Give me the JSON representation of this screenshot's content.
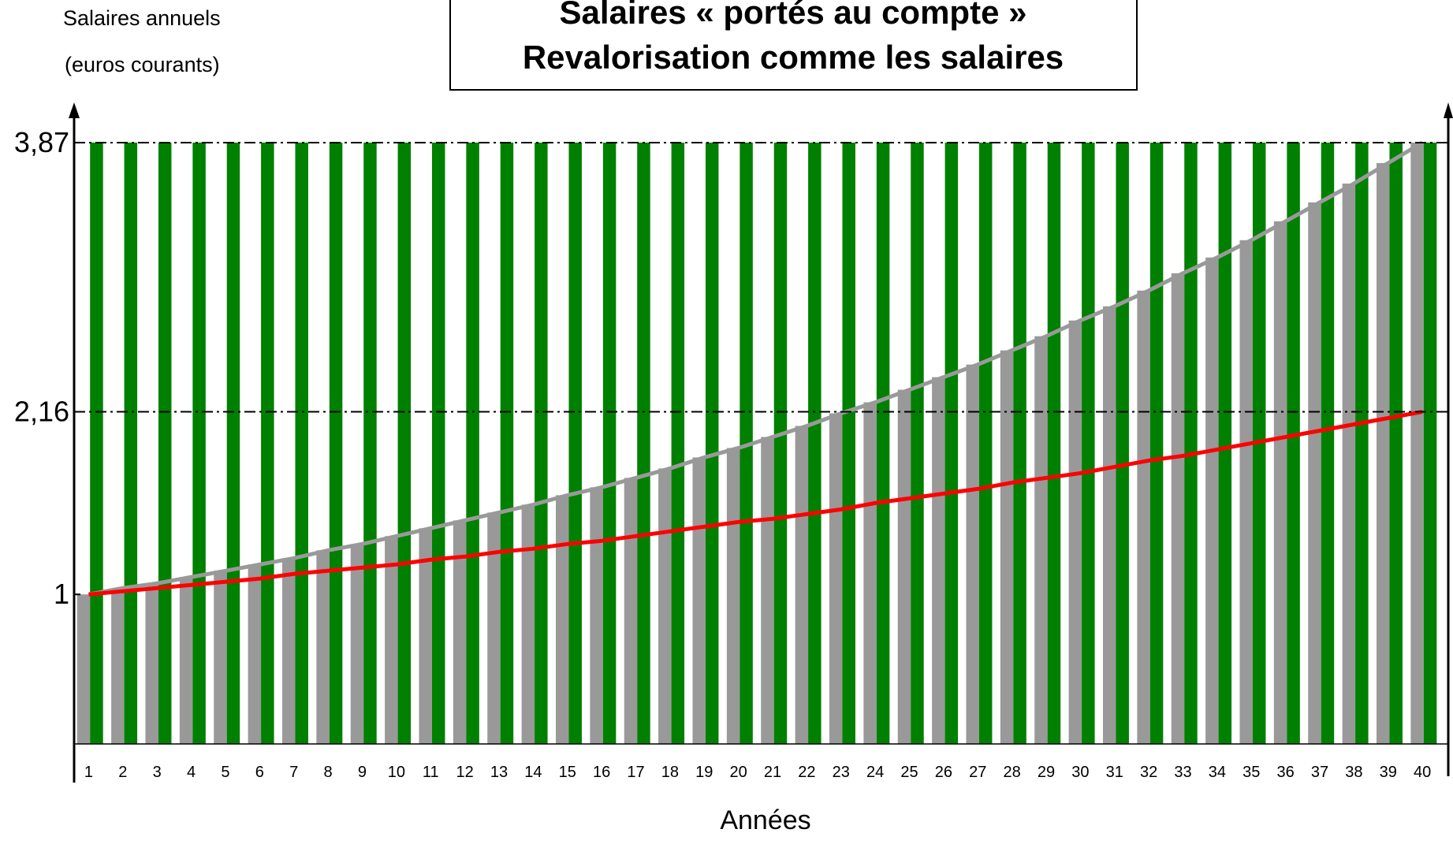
{
  "chart_data": {
    "type": "bar",
    "title": "Salaires « portés au compte »",
    "subtitle": "Revalorisation comme les salaires",
    "y_label": [
      "Salaires annuels",
      "(euros courants)"
    ],
    "x_label": "Années",
    "categories": [
      "1",
      "2",
      "3",
      "4",
      "5",
      "6",
      "7",
      "8",
      "9",
      "10",
      "11",
      "12",
      "13",
      "14",
      "15",
      "16",
      "17",
      "18",
      "19",
      "20",
      "21",
      "22",
      "23",
      "24",
      "25",
      "26",
      "27",
      "28",
      "29",
      "30",
      "31",
      "32",
      "33",
      "34",
      "35",
      "36",
      "37",
      "38",
      "39",
      "40"
    ],
    "series": [
      {
        "type": "bar",
        "color": "#999999",
        "values": [
          1.0,
          1.04,
          1.07,
          1.11,
          1.15,
          1.19,
          1.23,
          1.28,
          1.32,
          1.37,
          1.42,
          1.47,
          1.52,
          1.57,
          1.63,
          1.68,
          1.74,
          1.8,
          1.87,
          1.93,
          2.0,
          2.07,
          2.15,
          2.22,
          2.3,
          2.38,
          2.46,
          2.55,
          2.64,
          2.74,
          2.83,
          2.93,
          3.04,
          3.14,
          3.25,
          3.37,
          3.49,
          3.61,
          3.74,
          3.87
        ]
      },
      {
        "type": "bar",
        "color": "#008000",
        "values": [
          3.87,
          3.87,
          3.87,
          3.87,
          3.87,
          3.87,
          3.87,
          3.87,
          3.87,
          3.87,
          3.87,
          3.87,
          3.87,
          3.87,
          3.87,
          3.87,
          3.87,
          3.87,
          3.87,
          3.87,
          3.87,
          3.87,
          3.87,
          3.87,
          3.87,
          3.87,
          3.87,
          3.87,
          3.87,
          3.87,
          3.87,
          3.87,
          3.87,
          3.87,
          3.87,
          3.87,
          3.87,
          3.87,
          3.87,
          3.87
        ]
      },
      {
        "type": "line",
        "color": "#999999",
        "values": [
          1.0,
          1.04,
          1.07,
          1.11,
          1.15,
          1.19,
          1.23,
          1.28,
          1.32,
          1.37,
          1.42,
          1.47,
          1.52,
          1.57,
          1.63,
          1.68,
          1.74,
          1.8,
          1.87,
          1.93,
          2.0,
          2.07,
          2.15,
          2.22,
          2.3,
          2.38,
          2.46,
          2.55,
          2.64,
          2.74,
          2.83,
          2.93,
          3.04,
          3.14,
          3.25,
          3.37,
          3.49,
          3.61,
          3.74,
          3.87
        ]
      },
      {
        "type": "line",
        "color": "#ff0000",
        "values": [
          1.0,
          1.02,
          1.04,
          1.06,
          1.08,
          1.1,
          1.13,
          1.15,
          1.17,
          1.19,
          1.22,
          1.24,
          1.27,
          1.29,
          1.32,
          1.34,
          1.37,
          1.4,
          1.43,
          1.46,
          1.48,
          1.51,
          1.54,
          1.58,
          1.61,
          1.64,
          1.67,
          1.71,
          1.74,
          1.77,
          1.81,
          1.85,
          1.88,
          1.92,
          1.96,
          2.0,
          2.04,
          2.08,
          2.12,
          2.16
        ]
      }
    ],
    "ylim": [
      0.05,
      4.1
    ],
    "yticks": [
      1,
      {
        "value": 2.16,
        "label": "2,16"
      },
      {
        "value": 3.87,
        "label": "3,87"
      }
    ],
    "hlines": [
      2.16,
      3.87
    ]
  }
}
